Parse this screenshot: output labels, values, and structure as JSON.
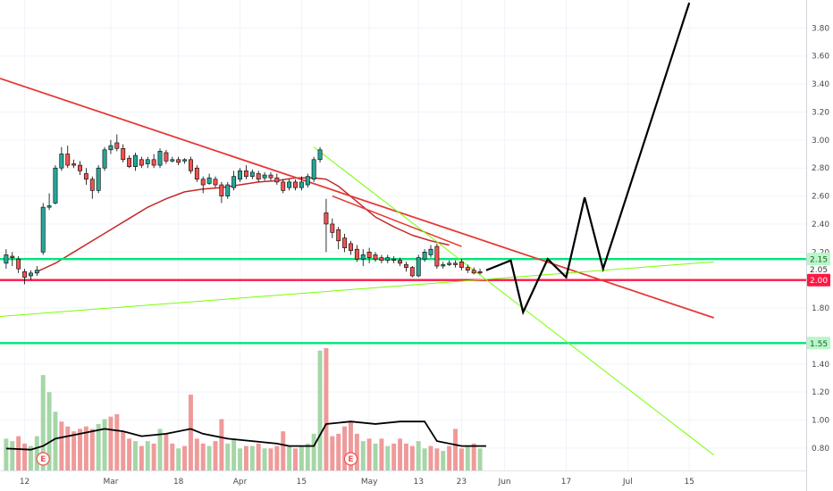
{
  "chart_data": {
    "type": "candlestick",
    "price_axis": {
      "range": [
        0.64,
        4.0
      ],
      "ticks": [
        {
          "value": 3.8,
          "label": "3.80"
        },
        {
          "value": 3.6,
          "label": "3.60"
        },
        {
          "value": 3.4,
          "label": "3.40"
        },
        {
          "value": 3.2,
          "label": "3.20"
        },
        {
          "value": 3.0,
          "label": "3.00"
        },
        {
          "value": 2.8,
          "label": "2.80"
        },
        {
          "value": 2.6,
          "label": "2.60"
        },
        {
          "value": 2.4,
          "label": "2.40"
        },
        {
          "value": 2.2,
          "label": "2.20"
        },
        {
          "value": 1.8,
          "label": "1.80"
        },
        {
          "value": 1.4,
          "label": "1.40"
        },
        {
          "value": 1.2,
          "label": "1.20"
        },
        {
          "value": 1.0,
          "label": "1.00"
        },
        {
          "value": 0.8,
          "label": "0.80"
        }
      ]
    },
    "time_axis": {
      "bar_range": [
        -3,
        128
      ],
      "ticks": [
        {
          "bar": 1,
          "label": "12"
        },
        {
          "bar": 15,
          "label": "Mar"
        },
        {
          "bar": 26,
          "label": "18"
        },
        {
          "bar": 36,
          "label": "Apr"
        },
        {
          "bar": 46,
          "label": "15"
        },
        {
          "bar": 57,
          "label": "May"
        },
        {
          "bar": 65,
          "label": "13"
        },
        {
          "bar": 72,
          "label": "23"
        },
        {
          "bar": 79,
          "label": "Jun"
        },
        {
          "bar": 89,
          "label": "17"
        },
        {
          "bar": 99,
          "label": "Jul"
        },
        {
          "bar": 109,
          "label": "15"
        }
      ]
    },
    "candles": [
      [
        -2,
        2.12,
        2.18,
        2.22,
        2.08
      ],
      [
        -1,
        2.17,
        2.16,
        2.2,
        2.1
      ],
      [
        0,
        2.15,
        2.08,
        2.17,
        2.05
      ],
      [
        1,
        2.06,
        2.02,
        2.08,
        1.97
      ],
      [
        2,
        2.03,
        2.05,
        2.07,
        2.0
      ],
      [
        3,
        2.05,
        2.07,
        2.1,
        2.03
      ],
      [
        4,
        2.2,
        2.52,
        2.55,
        2.18
      ],
      [
        5,
        2.52,
        2.53,
        2.62,
        2.5
      ],
      [
        6,
        2.55,
        2.8,
        2.82,
        2.54
      ],
      [
        7,
        2.8,
        2.9,
        2.95,
        2.78
      ],
      [
        8,
        2.9,
        2.82,
        2.96,
        2.8
      ],
      [
        9,
        2.83,
        2.82,
        2.86,
        2.8
      ],
      [
        10,
        2.82,
        2.78,
        2.85,
        2.75
      ],
      [
        11,
        2.76,
        2.72,
        2.8,
        2.68
      ],
      [
        12,
        2.72,
        2.64,
        2.74,
        2.58
      ],
      [
        13,
        2.64,
        2.8,
        2.82,
        2.62
      ],
      [
        14,
        2.8,
        2.93,
        2.95,
        2.78
      ],
      [
        15,
        2.93,
        2.96,
        3.0,
        2.9
      ],
      [
        16,
        2.98,
        2.94,
        3.04,
        2.92
      ],
      [
        17,
        2.94,
        2.86,
        2.97,
        2.84
      ],
      [
        18,
        2.87,
        2.81,
        2.89,
        2.8
      ],
      [
        19,
        2.81,
        2.89,
        2.91,
        2.78
      ],
      [
        20,
        2.86,
        2.82,
        2.88,
        2.8
      ],
      [
        21,
        2.83,
        2.86,
        2.88,
        2.8
      ],
      [
        22,
        2.86,
        2.82,
        2.9,
        2.8
      ],
      [
        23,
        2.82,
        2.92,
        2.94,
        2.8
      ],
      [
        24,
        2.91,
        2.85,
        2.93,
        2.83
      ],
      [
        25,
        2.85,
        2.86,
        2.88,
        2.84
      ],
      [
        26,
        2.86,
        2.84,
        2.88,
        2.82
      ],
      [
        27,
        2.85,
        2.86,
        2.87,
        2.83
      ],
      [
        28,
        2.86,
        2.78,
        2.88,
        2.76
      ],
      [
        29,
        2.8,
        2.72,
        2.82,
        2.7
      ],
      [
        30,
        2.72,
        2.68,
        2.74,
        2.62
      ],
      [
        31,
        2.69,
        2.73,
        2.76,
        2.68
      ],
      [
        32,
        2.72,
        2.68,
        2.74,
        2.66
      ],
      [
        33,
        2.68,
        2.6,
        2.7,
        2.55
      ],
      [
        34,
        2.6,
        2.68,
        2.7,
        2.58
      ],
      [
        35,
        2.66,
        2.74,
        2.78,
        2.64
      ],
      [
        36,
        2.72,
        2.78,
        2.8,
        2.7
      ],
      [
        37,
        2.78,
        2.74,
        2.82,
        2.72
      ],
      [
        38,
        2.74,
        2.77,
        2.79,
        2.72
      ],
      [
        39,
        2.76,
        2.72,
        2.78,
        2.7
      ],
      [
        40,
        2.73,
        2.75,
        2.77,
        2.71
      ],
      [
        41,
        2.75,
        2.73,
        2.77,
        2.71
      ],
      [
        42,
        2.73,
        2.7,
        2.76,
        2.68
      ],
      [
        43,
        2.7,
        2.64,
        2.72,
        2.62
      ],
      [
        44,
        2.66,
        2.7,
        2.72,
        2.64
      ],
      [
        45,
        2.7,
        2.66,
        2.72,
        2.64
      ],
      [
        46,
        2.66,
        2.7,
        2.74,
        2.64
      ],
      [
        47,
        2.68,
        2.74,
        2.76,
        2.66
      ],
      [
        48,
        2.72,
        2.86,
        2.88,
        2.7
      ],
      [
        49,
        2.86,
        2.93,
        2.95,
        2.84
      ],
      [
        50,
        2.48,
        2.4,
        2.58,
        2.2
      ],
      [
        51,
        2.4,
        2.34,
        2.44,
        2.3
      ],
      [
        52,
        2.36,
        2.28,
        2.38,
        2.22
      ],
      [
        53,
        2.3,
        2.23,
        2.33,
        2.2
      ],
      [
        54,
        2.26,
        2.21,
        2.28,
        2.18
      ],
      [
        55,
        2.22,
        2.15,
        2.25,
        2.13
      ],
      [
        56,
        2.15,
        2.18,
        2.22,
        2.1
      ],
      [
        57,
        2.2,
        2.16,
        2.23,
        2.12
      ],
      [
        58,
        2.18,
        2.15,
        2.2,
        2.13
      ],
      [
        59,
        2.16,
        2.14,
        2.18,
        2.12
      ],
      [
        60,
        2.14,
        2.16,
        2.18,
        2.12
      ],
      [
        61,
        2.15,
        2.14,
        2.17,
        2.12
      ],
      [
        62,
        2.14,
        2.12,
        2.16,
        2.1
      ],
      [
        63,
        2.11,
        2.09,
        2.13,
        2.06
      ],
      [
        64,
        2.09,
        2.03,
        2.1,
        2.02
      ],
      [
        65,
        2.03,
        2.16,
        2.18,
        2.02
      ],
      [
        66,
        2.15,
        2.2,
        2.22,
        2.13
      ],
      [
        67,
        2.18,
        2.22,
        2.25,
        2.16
      ],
      [
        68,
        2.24,
        2.1,
        2.26,
        2.08
      ],
      [
        69,
        2.1,
        2.11,
        2.13,
        2.08
      ],
      [
        70,
        2.11,
        2.12,
        2.14,
        2.1
      ],
      [
        71,
        2.12,
        2.11,
        2.14,
        2.09
      ],
      [
        72,
        2.13,
        2.09,
        2.15,
        2.07
      ],
      [
        73,
        2.09,
        2.07,
        2.11,
        2.05
      ],
      [
        74,
        2.07,
        2.05,
        2.09,
        2.04
      ],
      [
        75,
        2.06,
        2.05,
        2.08,
        2.04
      ]
    ],
    "moving_average_points": [
      [
        3,
        2.06
      ],
      [
        6,
        2.12
      ],
      [
        9,
        2.2
      ],
      [
        12,
        2.28
      ],
      [
        15,
        2.36
      ],
      [
        18,
        2.44
      ],
      [
        21,
        2.52
      ],
      [
        24,
        2.58
      ],
      [
        27,
        2.63
      ],
      [
        30,
        2.65
      ],
      [
        33,
        2.66
      ],
      [
        36,
        2.68
      ],
      [
        39,
        2.7
      ],
      [
        42,
        2.71
      ],
      [
        45,
        2.73
      ],
      [
        48,
        2.73
      ],
      [
        50,
        2.72
      ],
      [
        52,
        2.67
      ],
      [
        55,
        2.56
      ],
      [
        58,
        2.45
      ],
      [
        61,
        2.38
      ],
      [
        64,
        2.32
      ],
      [
        67,
        2.28
      ],
      [
        70,
        2.25
      ]
    ],
    "horizontal_levels": [
      {
        "value": 2.15,
        "label": "2.15",
        "color": "#00e676",
        "badge": "#b9f6ca"
      },
      {
        "value": 2.0,
        "label": "2.00",
        "color": "#ff1744",
        "badge": "#ff1744"
      },
      {
        "value": 1.55,
        "label": "1.55",
        "color": "#00e676",
        "badge": "#b9f6ca"
      }
    ],
    "crowded_label": "2.05",
    "trend_lines": [
      {
        "color": "#e53935",
        "width": 1.8,
        "points": [
          [
            -3,
            3.44
          ],
          [
            113,
            1.73
          ]
        ]
      },
      {
        "color": "#e53935",
        "width": 1.5,
        "points": [
          [
            51,
            2.6
          ],
          [
            72,
            2.24
          ]
        ]
      },
      {
        "color": "#76ff03",
        "width": 1,
        "points": [
          [
            -3,
            1.74
          ],
          [
            113,
            2.13
          ]
        ]
      },
      {
        "color": "#76ff03",
        "width": 1,
        "points": [
          [
            48,
            2.95
          ],
          [
            113,
            0.75
          ]
        ]
      }
    ],
    "projection": {
      "color": "#000000",
      "points": [
        [
          76,
          2.07
        ],
        [
          80,
          2.14
        ],
        [
          82,
          1.77
        ],
        [
          86,
          2.15
        ],
        [
          89,
          2.02
        ],
        [
          92,
          2.59
        ],
        [
          95,
          2.08
        ],
        [
          109,
          3.98
        ]
      ]
    },
    "volume": {
      "range": [
        0,
        1.0
      ],
      "bars": [
        [
          -2,
          0.26,
          "up"
        ],
        [
          -1,
          0.24,
          "up"
        ],
        [
          0,
          0.28,
          "down"
        ],
        [
          1,
          0.22,
          "down"
        ],
        [
          2,
          0.2,
          "up"
        ],
        [
          3,
          0.28,
          "up"
        ],
        [
          4,
          0.78,
          "up"
        ],
        [
          5,
          0.64,
          "up"
        ],
        [
          6,
          0.48,
          "up"
        ],
        [
          7,
          0.4,
          "down"
        ],
        [
          8,
          0.36,
          "down"
        ],
        [
          9,
          0.32,
          "down"
        ],
        [
          10,
          0.34,
          "down"
        ],
        [
          11,
          0.36,
          "down"
        ],
        [
          12,
          0.34,
          "down"
        ],
        [
          13,
          0.38,
          "up"
        ],
        [
          14,
          0.42,
          "up"
        ],
        [
          15,
          0.44,
          "down"
        ],
        [
          16,
          0.46,
          "down"
        ],
        [
          17,
          0.32,
          "down"
        ],
        [
          18,
          0.26,
          "down"
        ],
        [
          19,
          0.24,
          "up"
        ],
        [
          20,
          0.2,
          "down"
        ],
        [
          21,
          0.24,
          "up"
        ],
        [
          22,
          0.22,
          "down"
        ],
        [
          23,
          0.34,
          "up"
        ],
        [
          24,
          0.3,
          "down"
        ],
        [
          25,
          0.22,
          "down"
        ],
        [
          26,
          0.18,
          "up"
        ],
        [
          27,
          0.2,
          "down"
        ],
        [
          28,
          0.62,
          "down"
        ],
        [
          29,
          0.26,
          "down"
        ],
        [
          30,
          0.22,
          "down"
        ],
        [
          31,
          0.2,
          "up"
        ],
        [
          32,
          0.24,
          "down"
        ],
        [
          33,
          0.42,
          "down"
        ],
        [
          34,
          0.22,
          "up"
        ],
        [
          35,
          0.26,
          "up"
        ],
        [
          36,
          0.18,
          "up"
        ],
        [
          37,
          0.2,
          "down"
        ],
        [
          38,
          0.2,
          "up"
        ],
        [
          39,
          0.22,
          "down"
        ],
        [
          40,
          0.18,
          "up"
        ],
        [
          41,
          0.18,
          "down"
        ],
        [
          42,
          0.2,
          "down"
        ],
        [
          43,
          0.32,
          "down"
        ],
        [
          44,
          0.2,
          "up"
        ],
        [
          45,
          0.18,
          "down"
        ],
        [
          46,
          0.2,
          "up"
        ],
        [
          47,
          0.22,
          "up"
        ],
        [
          48,
          0.3,
          "up"
        ],
        [
          49,
          0.98,
          "up"
        ],
        [
          50,
          1.0,
          "down"
        ],
        [
          51,
          0.28,
          "down"
        ],
        [
          52,
          0.3,
          "down"
        ],
        [
          53,
          0.36,
          "down"
        ],
        [
          54,
          0.4,
          "down"
        ],
        [
          55,
          0.3,
          "down"
        ],
        [
          56,
          0.24,
          "up"
        ],
        [
          57,
          0.26,
          "down"
        ],
        [
          58,
          0.22,
          "up"
        ],
        [
          59,
          0.26,
          "down"
        ],
        [
          60,
          0.2,
          "up"
        ],
        [
          61,
          0.22,
          "down"
        ],
        [
          62,
          0.26,
          "down"
        ],
        [
          63,
          0.22,
          "down"
        ],
        [
          64,
          0.2,
          "down"
        ],
        [
          65,
          0.24,
          "up"
        ],
        [
          66,
          0.18,
          "up"
        ],
        [
          67,
          0.2,
          "down"
        ],
        [
          68,
          0.18,
          "down"
        ],
        [
          69,
          0.16,
          "up"
        ],
        [
          70,
          0.2,
          "down"
        ],
        [
          71,
          0.34,
          "down"
        ],
        [
          72,
          0.18,
          "down"
        ],
        [
          73,
          0.2,
          "up"
        ],
        [
          74,
          0.22,
          "down"
        ],
        [
          75,
          0.18,
          "up"
        ]
      ],
      "average_line": [
        [
          -2,
          0.18
        ],
        [
          2,
          0.17
        ],
        [
          4,
          0.2
        ],
        [
          6,
          0.26
        ],
        [
          10,
          0.3
        ],
        [
          14,
          0.34
        ],
        [
          17,
          0.32
        ],
        [
          20,
          0.28
        ],
        [
          24,
          0.3
        ],
        [
          28,
          0.34
        ],
        [
          30,
          0.3
        ],
        [
          34,
          0.26
        ],
        [
          38,
          0.24
        ],
        [
          42,
          0.22
        ],
        [
          44,
          0.2
        ],
        [
          47,
          0.2
        ],
        [
          48,
          0.2
        ],
        [
          50,
          0.38
        ],
        [
          54,
          0.4
        ],
        [
          58,
          0.38
        ],
        [
          62,
          0.4
        ],
        [
          66,
          0.4
        ],
        [
          68,
          0.24
        ],
        [
          72,
          0.2
        ],
        [
          76,
          0.2
        ]
      ],
      "event_markers": [
        {
          "bar": 4,
          "label": "E"
        },
        {
          "bar": 54,
          "label": "E"
        }
      ]
    },
    "colors": {
      "up": "#26a69a",
      "down": "#ef5350",
      "vol_up": "#a5d6a7",
      "vol_down": "#ef9a9a",
      "grid": "#f0f3fa",
      "axis_text": "#4a4a4a"
    }
  }
}
